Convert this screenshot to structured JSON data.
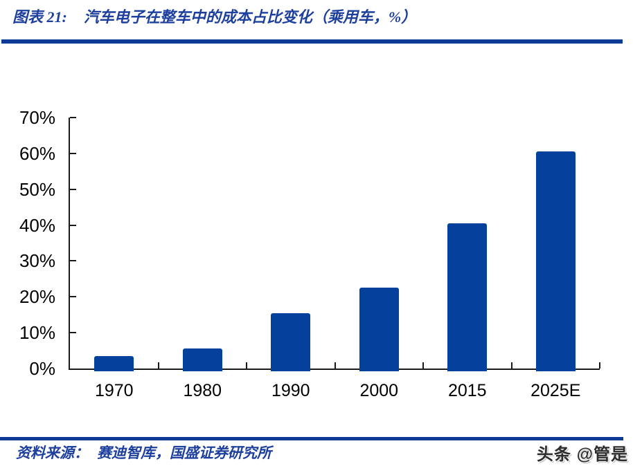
{
  "header": {
    "figure_label": "图表 21:",
    "figure_title": "汽车电子在整车中的成本占比变化（乘用车，%）"
  },
  "chart_data": {
    "type": "bar",
    "title": "汽车电子在整车中的成本占比变化（乘用车，%）",
    "categories": [
      "1970",
      "1980",
      "1990",
      "2000",
      "2015",
      "2025E"
    ],
    "values": [
      3.5,
      5.5,
      15.5,
      22.5,
      40.5,
      60.5
    ],
    "unit": "%",
    "xlabel": "",
    "ylabel": "",
    "ylim": [
      0,
      70
    ],
    "ytick_step": 10,
    "ytick_labels": [
      "0%",
      "10%",
      "20%",
      "30%",
      "40%",
      "50%",
      "60%",
      "70%"
    ],
    "grid": false,
    "legend": "none",
    "bar_color": "#04419c",
    "axis_color": "#1a1a1a"
  },
  "footer": {
    "source_label": "资料来源：",
    "source_text": "赛迪智库，国盛证券研究所",
    "watermark": "头条 @管是"
  },
  "colors": {
    "title_blue": "#1d3f9e",
    "divider_blue": "#0c3a94",
    "bar_blue": "#04419c"
  }
}
